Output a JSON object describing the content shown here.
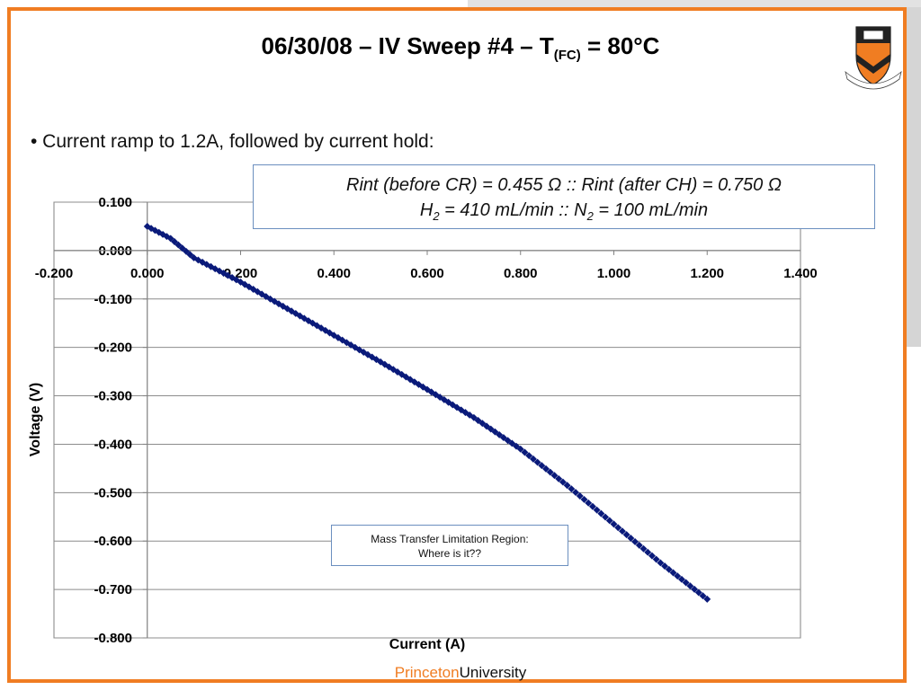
{
  "slide": {
    "title_main": "06/30/08 – IV Sweep #4 – T",
    "title_sub": "(FC)",
    "title_end": " = 80°C",
    "bullet": "• Current ramp to 1.2A, followed by current hold:",
    "rint_line": "Rint (before CR) = 0.455 Ω :: Rint (after CH) = 0.750 Ω",
    "gas_h_pre": "H",
    "gas_h_sub": "2",
    "gas_mid": " = 410 mL/min :: N",
    "gas_n_sub": "2",
    "gas_end": " = 100 mL/min",
    "mass_line1": "Mass Transfer Limitation Region:",
    "mass_line2": "Where is it??",
    "footer_princeton": "Princeton",
    "footer_university": "University",
    "accent_color": "#f07d22",
    "seal_icon": "princeton-shield-seal-icon"
  },
  "chart_data": {
    "type": "scatter",
    "xlabel": "Current (A)",
    "ylabel": "Voltage (V)",
    "xlim": [
      -0.2,
      1.4
    ],
    "ylim": [
      -0.8,
      0.1
    ],
    "x_ticks": [
      "-0.200",
      "0.000",
      "0.200",
      "0.400",
      "0.600",
      "0.800",
      "1.000",
      "1.200",
      "1.400"
    ],
    "y_ticks": [
      "0.100",
      "0.000",
      "-0.100",
      "-0.200",
      "-0.300",
      "-0.400",
      "-0.500",
      "-0.600",
      "-0.700",
      "-0.800"
    ],
    "grid": "horizontal",
    "marker_color": "#0a1a7a",
    "series": [
      {
        "values_x": [
          0.0,
          0.05,
          0.1,
          0.2,
          0.3,
          0.4,
          0.5,
          0.6,
          0.7,
          0.8,
          0.9,
          1.0,
          1.1,
          1.2
        ],
        "values_y": [
          0.05,
          0.025,
          -0.015,
          -0.065,
          -0.12,
          -0.175,
          -0.23,
          -0.287,
          -0.345,
          -0.41,
          -0.485,
          -0.565,
          -0.645,
          -0.72
        ]
      }
    ]
  }
}
